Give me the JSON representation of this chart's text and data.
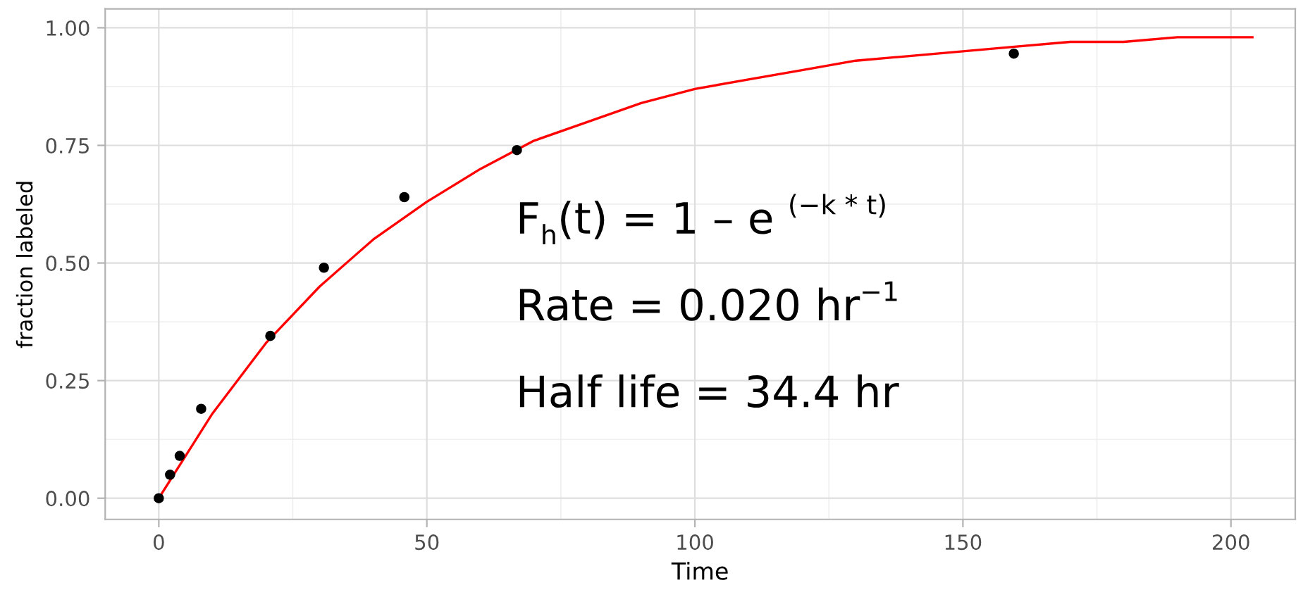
{
  "chart_data": {
    "type": "scatter",
    "xlabel": "Time",
    "ylabel": "fraction labeled",
    "xlim": [
      -10,
      212
    ],
    "ylim": [
      -0.045,
      1.04
    ],
    "xticks": [
      0,
      50,
      100,
      150,
      200
    ],
    "yticks": [
      {
        "value": 0,
        "label": "0.00"
      },
      {
        "value": 0.25,
        "label": "0.25"
      },
      {
        "value": 0.5,
        "label": "0.50"
      },
      {
        "value": 0.75,
        "label": "0.75"
      },
      {
        "value": 1,
        "label": "1.00"
      }
    ],
    "grid": true,
    "series": [
      {
        "marker": "circle",
        "color": "#000000",
        "x": [
          0,
          2.1,
          3.9,
          7.9,
          20.8,
          30.8,
          45.8,
          66.8,
          159.5
        ],
        "values": [
          0,
          0.05,
          0.09,
          0.19,
          0.345,
          0.49,
          0.64,
          0.74,
          0.945
        ]
      },
      {
        "type": "line",
        "marker": "none",
        "color": "#ff0000",
        "x": [
          0,
          10,
          20,
          30,
          40,
          50,
          60,
          70,
          80,
          90,
          100,
          110,
          120,
          130,
          140,
          150,
          160,
          170,
          180,
          190,
          200,
          204
        ],
        "values": [
          0,
          0.18,
          0.33,
          0.45,
          0.55,
          0.63,
          0.7,
          0.76,
          0.8,
          0.84,
          0.87,
          0.89,
          0.91,
          0.93,
          0.94,
          0.95,
          0.96,
          0.97,
          0.97,
          0.98,
          0.98,
          0.98
        ]
      }
    ],
    "annotations": [
      "F$_{h}$(t) = 1 – e $^{(−k * t)}$",
      "Rate = 0.020 hr$^{−1}$",
      "Half life = 34.4 hr"
    ]
  }
}
